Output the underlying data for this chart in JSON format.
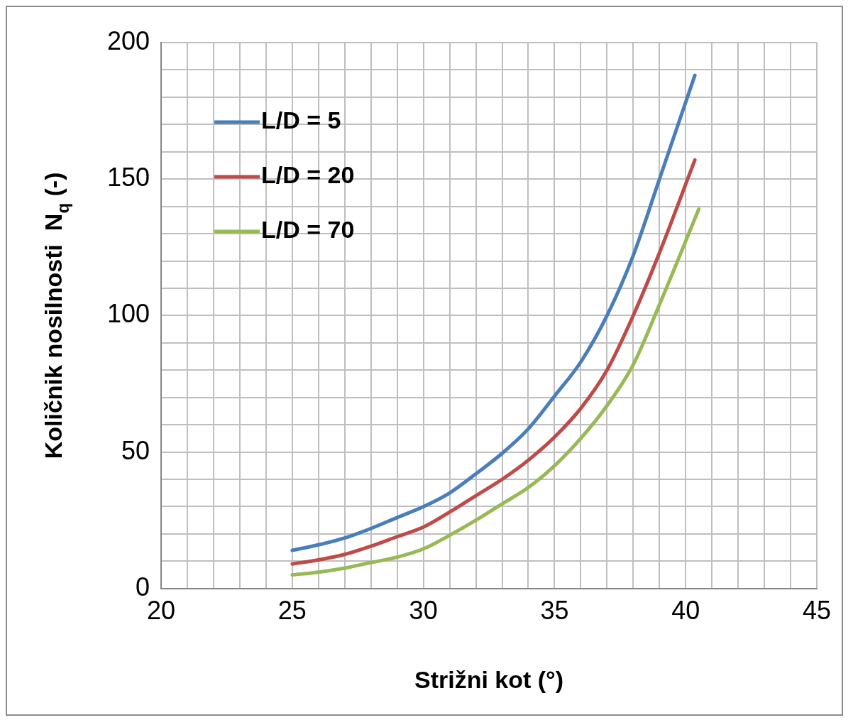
{
  "chart_data": {
    "type": "line",
    "xlabel": "Strižni kot (°)",
    "ylabel": "Količnik nosilnosti  N$_{q}$ (-)",
    "xlim": [
      20,
      45
    ],
    "ylim": [
      0,
      200
    ],
    "xticks": [
      20,
      {
        "value": 21,
        "label": null
      },
      {
        "value": 22,
        "label": null
      },
      {
        "value": 23,
        "label": null
      },
      {
        "value": 24,
        "label": null
      },
      25,
      {
        "value": 26,
        "label": null
      },
      {
        "value": 27,
        "label": null
      },
      {
        "value": 28,
        "label": null
      },
      {
        "value": 29,
        "label": null
      },
      30,
      {
        "value": 31,
        "label": null
      },
      {
        "value": 32,
        "label": null
      },
      {
        "value": 33,
        "label": null
      },
      {
        "value": 34,
        "label": null
      },
      35,
      {
        "value": 36,
        "label": null
      },
      {
        "value": 37,
        "label": null
      },
      {
        "value": 38,
        "label": null
      },
      {
        "value": 39,
        "label": null
      },
      40,
      {
        "value": 41,
        "label": null
      },
      {
        "value": 42,
        "label": null
      },
      {
        "value": 43,
        "label": null
      },
      {
        "value": 44,
        "label": null
      },
      45
    ],
    "yticks": [
      0,
      {
        "value": 10,
        "label": null
      },
      {
        "value": 20,
        "label": null
      },
      {
        "value": 30,
        "label": null
      },
      {
        "value": 40,
        "label": null
      },
      50,
      {
        "value": 60,
        "label": null
      },
      {
        "value": 70,
        "label": null
      },
      {
        "value": 80,
        "label": null
      },
      {
        "value": 90,
        "label": null
      },
      100,
      {
        "value": 110,
        "label": null
      },
      {
        "value": 120,
        "label": null
      },
      {
        "value": 130,
        "label": null
      },
      {
        "value": 140,
        "label": null
      },
      150,
      {
        "value": 160,
        "label": null
      },
      {
        "value": 170,
        "label": null
      },
      {
        "value": 180,
        "label": null
      },
      {
        "value": 190,
        "label": null
      },
      200
    ],
    "grid": true,
    "legend": "top left",
    "marker": "none",
    "line_style": "solid",
    "series": [
      {
        "name": "L/D = 5",
        "color": "#4a7ebb",
        "x": [
          25,
          26,
          27,
          28,
          29,
          30,
          31,
          32,
          33,
          34,
          35,
          36,
          37,
          38,
          39,
          40.35
        ],
        "values": [
          14,
          16,
          18.5,
          22,
          26,
          30,
          35,
          42,
          49.5,
          58.5,
          70.5,
          83,
          100,
          122,
          150,
          188
        ]
      },
      {
        "name": "L/D = 20",
        "color": "#be4b48",
        "x": [
          25,
          26,
          27,
          28,
          29,
          30,
          31,
          32,
          33,
          34,
          35,
          36,
          37,
          38,
          39,
          40.35
        ],
        "values": [
          9,
          10.5,
          12.5,
          15.5,
          19,
          22.5,
          28,
          34,
          40,
          47,
          55.5,
          66,
          80,
          100,
          123,
          157
        ]
      },
      {
        "name": "L/D = 70",
        "color": "#98b954",
        "x": [
          25,
          26,
          27,
          28,
          29,
          30,
          31,
          32,
          33,
          34,
          35,
          36,
          37,
          38,
          39,
          40.5
        ],
        "values": [
          5,
          6,
          7.5,
          9.5,
          11.5,
          14.5,
          19.5,
          25,
          31,
          37,
          45,
          55,
          67,
          82,
          104,
          139
        ]
      }
    ]
  }
}
